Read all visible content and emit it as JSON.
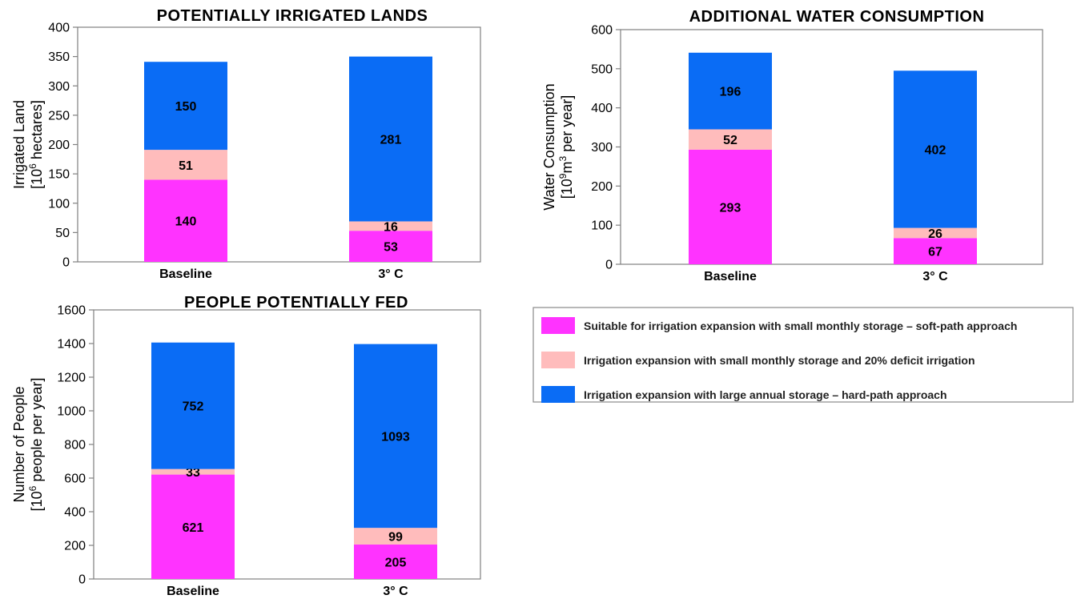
{
  "legend": {
    "items": [
      {
        "label": "Suitable for irrigation expansion with small monthly storage – soft-path approach",
        "color": "#ff33ff"
      },
      {
        "label": "Irrigation expansion with small monthly storage and 20% deficit irrigation",
        "color": "#ffbcbc"
      },
      {
        "label": "Irrigation expansion with large annual storage – hard-path approach",
        "color": "#0a6cf5"
      }
    ]
  },
  "chart_data": [
    {
      "type": "bar",
      "stacked": true,
      "title": "POTENTIALLY IRRIGATED LANDS",
      "ylabel_line1": "Irrigated Land",
      "ylabel_line2_pre": "[10",
      "ylabel_line2_sup": "6",
      "ylabel_line2_post": " hectares]",
      "categories": [
        "Baseline",
        "3° C"
      ],
      "ylim": [
        0,
        400
      ],
      "yticks": [
        0,
        50,
        100,
        150,
        200,
        250,
        300,
        350,
        400
      ],
      "series": [
        {
          "values": [
            140,
            53
          ],
          "color": "#ff33ff"
        },
        {
          "values": [
            51,
            16
          ],
          "color": "#ffbcbc"
        },
        {
          "values": [
            150,
            281
          ],
          "color": "#0a6cf5"
        }
      ]
    },
    {
      "type": "bar",
      "stacked": true,
      "title": "ADDITIONAL  WATER CONSUMPTION",
      "ylabel_line1": "Water Consumption",
      "ylabel_line2_pre": "[10",
      "ylabel_line2_sup": "9",
      "ylabel_line2_mid": "m",
      "ylabel_line2_sup2": "3",
      "ylabel_line2_post": " per year]",
      "categories": [
        "Baseline",
        "3° C"
      ],
      "ylim": [
        0,
        600
      ],
      "yticks": [
        0,
        100,
        200,
        300,
        400,
        500,
        600
      ],
      "series": [
        {
          "values": [
            293,
            67
          ],
          "color": "#ff33ff"
        },
        {
          "values": [
            52,
            26
          ],
          "color": "#ffbcbc"
        },
        {
          "values": [
            196,
            402
          ],
          "color": "#0a6cf5"
        }
      ]
    },
    {
      "type": "bar",
      "stacked": true,
      "title": "PEOPLE POTENTIALLY FED",
      "ylabel_line1": "Number of People",
      "ylabel_line2_pre": "[10",
      "ylabel_line2_sup": "6",
      "ylabel_line2_post": " people per year]",
      "categories": [
        "Baseline",
        "3° C"
      ],
      "ylim": [
        0,
        1600
      ],
      "yticks": [
        0,
        200,
        400,
        600,
        800,
        1000,
        1200,
        1400,
        1600
      ],
      "series": [
        {
          "values": [
            621,
            205
          ],
          "color": "#ff33ff"
        },
        {
          "values": [
            33,
            99
          ],
          "color": "#ffbcbc"
        },
        {
          "values": [
            752,
            1093
          ],
          "color": "#0a6cf5"
        }
      ]
    }
  ]
}
